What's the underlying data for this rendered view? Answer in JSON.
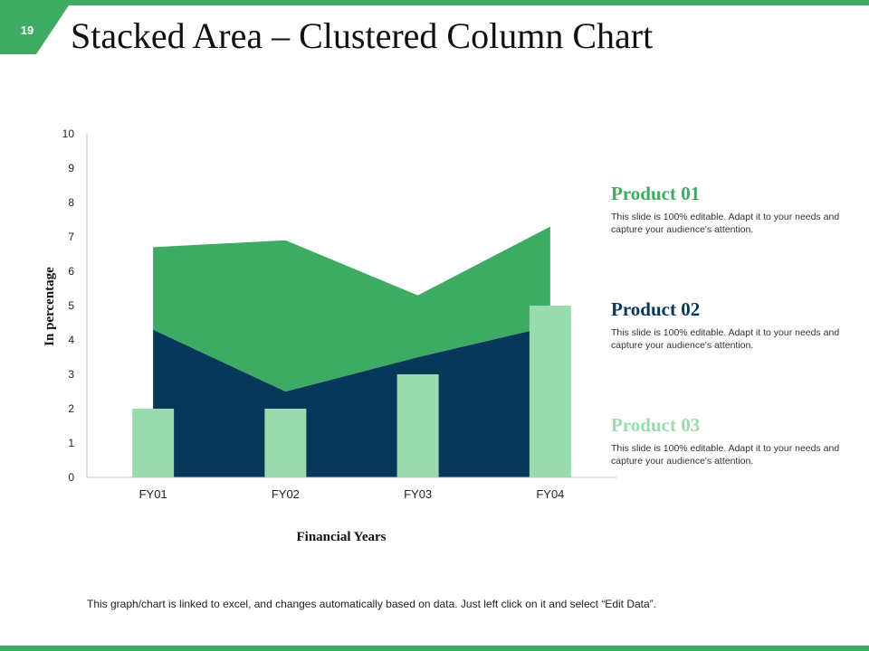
{
  "slide": {
    "number": "19",
    "title": "Stacked Area – Clustered Column Chart",
    "footer_note": "This graph/chart is linked to excel, and changes automatically based on data. Just left click on it and select “Edit Data”."
  },
  "colors": {
    "accent": "#3dab63",
    "product01": "#3dab63",
    "product02": "#06385a",
    "product03": "#99dbaf"
  },
  "legend": [
    {
      "name": "Product 01",
      "description": "This slide is 100% editable. Adapt it to your needs and capture your audience's attention."
    },
    {
      "name": "Product 02",
      "description": "This slide is 100% editable. Adapt it to your needs and capture your audience's attention."
    },
    {
      "name": "Product 03",
      "description": "This slide is 100% editable. Adapt it to your needs and capture your audience's attention."
    }
  ],
  "chart_data": {
    "type": "area",
    "combo": "stacked area + clustered column",
    "categories": [
      "FY01",
      "FY02",
      "FY03",
      "FY04"
    ],
    "xlabel": "Financial Years",
    "ylabel": "In percentage",
    "ylim": [
      0,
      10
    ],
    "yticks": [
      "0",
      "1",
      "2",
      "3",
      "4",
      "5",
      "6",
      "7",
      "8",
      "9",
      "10"
    ],
    "grid": false,
    "legend_position": "right",
    "series": [
      {
        "name": "Product 02",
        "type": "stacked-area",
        "values": [
          4.3,
          2.5,
          3.5,
          4.4
        ]
      },
      {
        "name": "Product 01",
        "type": "stacked-area",
        "values": [
          2.4,
          4.4,
          1.8,
          2.9
        ]
      },
      {
        "name": "Product 03",
        "type": "column",
        "values": [
          2,
          2,
          3,
          5
        ]
      }
    ]
  }
}
